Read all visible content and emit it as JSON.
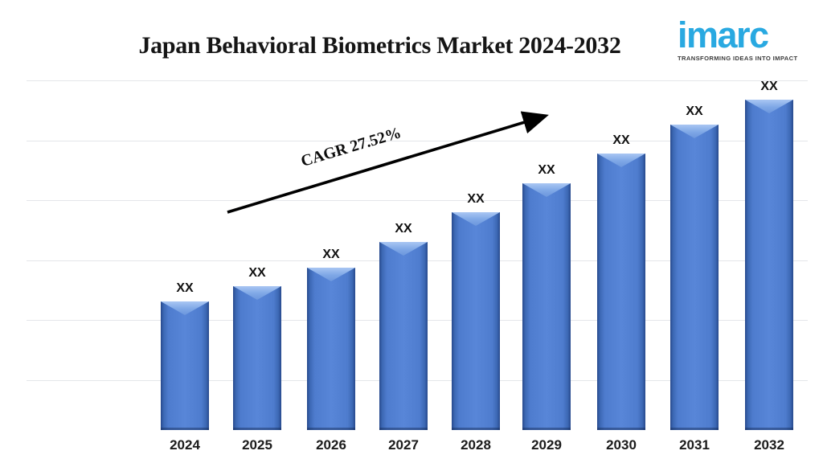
{
  "header": {
    "title": "Japan Behavioral Biometrics Market 2024-2032"
  },
  "logo": {
    "brand": "imarc",
    "tagline": "TRANSFORMING IDEAS INTO IMPACT",
    "brand_color": "#29a9e1",
    "tagline_color": "#3b3b3b"
  },
  "chart_data": {
    "type": "bar",
    "title": "Japan Behavioral Biometrics Market 2024-2032",
    "categories": [
      "2024",
      "2025",
      "2026",
      "2027",
      "2028",
      "2029",
      "2030",
      "2031",
      "2032"
    ],
    "values": [
      "XX",
      "XX",
      "XX",
      "XX",
      "XX",
      "XX",
      "XX",
      "XX",
      "XX"
    ],
    "relative_heights": [
      0.389,
      0.436,
      0.491,
      0.569,
      0.659,
      0.747,
      0.837,
      0.925,
      1.0
    ],
    "annotation": "CAGR 27.52%",
    "xlabel": "",
    "ylabel": "",
    "y_axis_ticks": "hidden",
    "grid": "horizontal",
    "legend": "none",
    "bar_color": "#4c7ac8",
    "bar_edge_color": "#27498c",
    "bar_bevel_color": "#a9c6f3",
    "gridline_color": "#e4e6ea",
    "annotation_arrow_color": "#000000"
  }
}
